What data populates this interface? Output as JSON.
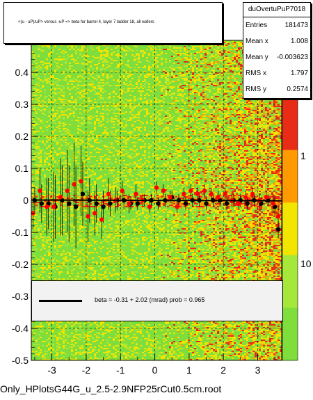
{
  "title": "<(u - uP)/uP> versus -uP => beta for barrel 4, layer 7 ladder 18, all wafers",
  "stats": {
    "name": "duOvertuPuP7018",
    "rows": [
      {
        "label": "Entries",
        "value": "181473"
      },
      {
        "label": "Mean x",
        "value": "1.008"
      },
      {
        "label": "Mean y",
        "value": "-0.003623"
      },
      {
        "label": "RMS x",
        "value": "1.797"
      },
      {
        "label": "RMS y",
        "value": "0.2574"
      }
    ]
  },
  "fit": {
    "text": "beta =    -0.31 +   2.02 (mrad) prob = 0.965"
  },
  "file_label": "Only_HPlotsG44G_u_2.5-2.9NFP25rCut0.5cm.root",
  "colors": {
    "background": "#ffffff",
    "map_green": "#7fdd3c",
    "map_yellow": "#f2e600",
    "map_orange": "#ff9a00",
    "map_red": "#e82c16",
    "points_black": "#000000",
    "points_red": "#ff0000"
  },
  "chart_data": {
    "type": "scatter",
    "title": "<(u - uP)/uP> versus -uP => beta for barrel 4, layer 7 ladder 18, all wafers",
    "xlim": [
      -3.6,
      3.7
    ],
    "ylim": [
      -0.5,
      0.5
    ],
    "x_ticks": [
      -3,
      -2,
      -1,
      0,
      1,
      2,
      3
    ],
    "y_ticks": [
      -0.5,
      -0.4,
      -0.3,
      -0.2,
      -0.1,
      0,
      0.1,
      0.2,
      0.3,
      0.4
    ],
    "z_ticks": [
      "1",
      "10"
    ],
    "grid": true,
    "background": "2D histogram heat map, green dominant, red/orange at positive x",
    "series": [
      {
        "color": "black",
        "x": [
          -3.5,
          -3.3,
          -3.1,
          -2.9,
          -2.7,
          -2.5,
          -2.3,
          -2.1,
          -1.9,
          -1.7,
          -1.5,
          -1.3,
          -1.1,
          -0.9,
          -0.7,
          -0.5,
          -0.3,
          -0.1,
          0.1,
          0.3,
          0.5,
          0.7,
          0.9,
          1.1,
          1.3,
          1.5,
          1.7,
          1.9,
          2.1,
          2.3,
          2.5,
          2.7,
          2.9,
          3.1,
          3.3,
          3.5,
          3.6
        ],
        "y": [
          0.0,
          -0.01,
          -0.01,
          -0.02,
          0.0,
          -0.01,
          -0.02,
          0.02,
          0.0,
          -0.01,
          -0.02,
          -0.01,
          0.0,
          0.0,
          -0.01,
          -0.01,
          0.0,
          0.0,
          -0.01,
          0.0,
          0.01,
          0.0,
          -0.01,
          0.0,
          0.0,
          -0.01,
          0.0,
          0.0,
          -0.01,
          0.0,
          0.0,
          -0.01,
          0.0,
          -0.01,
          0.0,
          -0.02,
          -0.09
        ],
        "yerr": [
          0.04,
          0.06,
          0.08,
          0.1,
          0.11,
          0.12,
          0.13,
          0.1,
          0.07,
          0.06,
          0.05,
          0.04,
          0.03,
          0.03,
          0.02,
          0.02,
          0.02,
          0.02,
          0.02,
          0.02,
          0.02,
          0.02,
          0.02,
          0.02,
          0.02,
          0.02,
          0.02,
          0.02,
          0.02,
          0.02,
          0.02,
          0.02,
          0.02,
          0.02,
          0.02,
          0.03,
          0.03
        ]
      },
      {
        "color": "red",
        "x": [
          -3.55,
          -3.35,
          -3.15,
          -2.95,
          -2.75,
          -2.55,
          -2.35,
          -2.15,
          -1.95,
          -1.75,
          -1.55,
          -1.35,
          -1.15,
          -0.95,
          -0.75,
          -0.55,
          -0.35,
          -0.15,
          0.05,
          0.25,
          0.45,
          0.65,
          0.85,
          1.05,
          1.25,
          1.45,
          1.65,
          1.85,
          2.05,
          2.25,
          2.45,
          2.65,
          2.85,
          3.05,
          3.25,
          3.45,
          3.6
        ],
        "y": [
          -0.04,
          0.03,
          -0.02,
          -0.02,
          0.01,
          0.03,
          0.05,
          0.06,
          -0.05,
          -0.04,
          -0.06,
          0.02,
          0.0,
          0.03,
          -0.01,
          0.02,
          0.0,
          -0.02,
          0.04,
          0.03,
          0.01,
          -0.02,
          0.02,
          0.03,
          0.02,
          0.03,
          0.02,
          0.01,
          0.02,
          0.0,
          -0.01,
          0.01,
          0.02,
          0.0,
          0.01,
          -0.01,
          -0.05
        ],
        "yerr": [
          0.05,
          0.07,
          0.09,
          0.11,
          0.12,
          0.13,
          0.13,
          0.11,
          0.08,
          0.07,
          0.06,
          0.05,
          0.04,
          0.03,
          0.03,
          0.03,
          0.02,
          0.02,
          0.02,
          0.02,
          0.02,
          0.02,
          0.02,
          0.02,
          0.02,
          0.02,
          0.02,
          0.02,
          0.02,
          0.02,
          0.02,
          0.02,
          0.02,
          0.02,
          0.02,
          0.03,
          0.03
        ]
      }
    ],
    "fit_line": {
      "slope": -0.00031,
      "intercept": 0.0
    }
  }
}
